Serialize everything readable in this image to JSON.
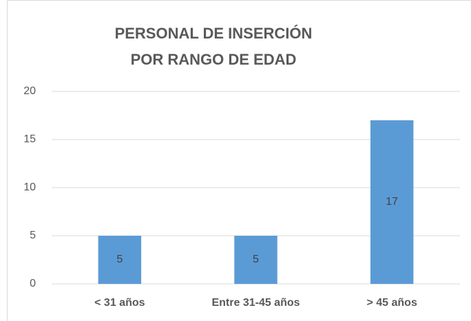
{
  "chart_data": {
    "type": "bar",
    "title": [
      "PERSONAL DE INSERCIÓN",
      "POR RANGO DE EDAD"
    ],
    "categories": [
      "< 31 años",
      "Entre 31-45 años",
      "> 45 años"
    ],
    "values": [
      5,
      5,
      17
    ],
    "color": "#5b9bd5",
    "ylim": [
      0,
      20
    ],
    "yticks": [
      0,
      5,
      10,
      15,
      20
    ],
    "grid": true
  }
}
